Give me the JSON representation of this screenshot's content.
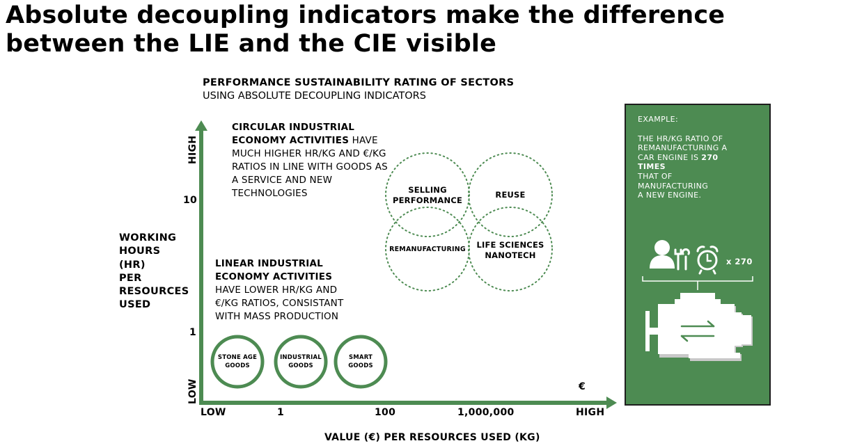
{
  "title": "Absolute decoupling indicators make the difference between the LIE and the CIE visible",
  "subtitle": {
    "line1": "PERFORMANCE SUSTAINABILITY RATING OF SECTORS",
    "line2": "USING ABSOLUTE DECOUPLING INDICATORS"
  },
  "circular": {
    "bold1": "CIRCULAR INDUSTRIAL",
    "bold2": "ECONOMY ACTIVITIES",
    "rest_inline": " HAVE",
    "lines": [
      "MUCH HIGHER HR/KG AND €/KG",
      "RATIOS IN LINE WITH GOODS AS",
      "A SERVICE AND NEW",
      "TECHNOLOGIES"
    ]
  },
  "linear": {
    "bold1": "LINEAR INDUSTRIAL",
    "bold2": "ECONOMY ACTIVITIES",
    "lines": [
      "HAVE LOWER HR/KG AND",
      "€/KG RATIOS, CONSISTANT",
      "WITH MASS PRODUCTION"
    ]
  },
  "y_axis": {
    "label_lines": [
      "WORKING",
      "HOURS",
      "(HR)",
      "PER",
      "RESOURCES",
      "USED"
    ],
    "high": "HIGH",
    "low": "LOW",
    "tick_10": "10",
    "tick_1": "1"
  },
  "x_axis": {
    "label": "VALUE (€) PER RESOURCES USED (KG)",
    "low": "LOW",
    "tick_1": "1",
    "tick_100": "100",
    "tick_1m": "1,000,000",
    "high": "HIGH",
    "currency": "€"
  },
  "cie_circles": {
    "selling_l1": "SELLING",
    "selling_l2": "PERFORMANCE",
    "reuse": "REUSE",
    "reman": "REMANUFACTURING",
    "life_l1": "LIFE SCIENCES",
    "life_l2": "NANOTECH"
  },
  "lie_circles": {
    "stone_l1": "STONE AGE",
    "stone_l2": "GOODS",
    "industrial_l1": "INDUSTRIAL",
    "industrial_l2": "GOODS",
    "smart_l1": "SMART",
    "smart_l2": "GOODS"
  },
  "example_panel": {
    "heading": "EXAMPLE:",
    "line1": "THE HR/KG RATIO OF",
    "line2": "REMANUFACTURING A",
    "line3_pre": "CAR ENGINE IS ",
    "line3_bold": "270",
    "line4_bold": "TIMES",
    "line5": "THAT OF",
    "line6": "MANUFACTURING",
    "line7": "A NEW ENGINE.",
    "multiplier": "x 270",
    "icons": [
      "person-icon",
      "tools-icon",
      "alarm-clock-icon",
      "car-engine-icon"
    ]
  },
  "colors": {
    "green": "#4d8b52",
    "panel_border": "#1e1e1e",
    "dotted_circle": "#4d8b52"
  }
}
